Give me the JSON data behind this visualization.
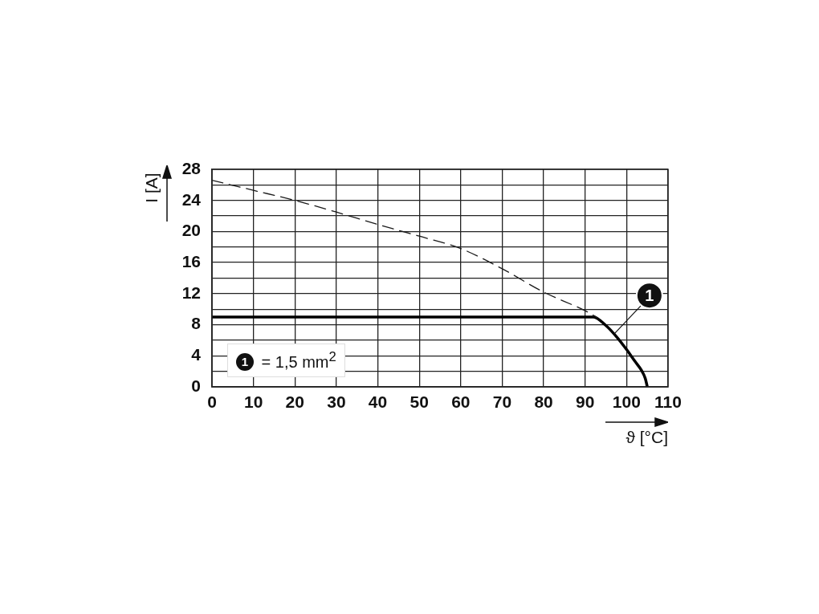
{
  "chart_data": {
    "type": "line",
    "xlabel": "ϑ [°C]",
    "ylabel": "I [A]",
    "series": [
      {
        "color": "#1a1a1a",
        "line_style": "dashed",
        "x": [
          0,
          10,
          20,
          30,
          40,
          50,
          60,
          70,
          80,
          90,
          93
        ],
        "values": [
          26.6,
          25.3,
          24,
          22.5,
          20.9,
          19.4,
          17.8,
          15.2,
          12.2,
          9.8,
          8.9
        ]
      },
      {
        "color": "#000000",
        "line_style": "solid",
        "x": [
          0,
          92,
          95,
          97.5,
          100,
          102,
          103.5,
          104.5,
          105
        ],
        "values": [
          9,
          9,
          7.9,
          6.5,
          4.8,
          3.3,
          2.2,
          1.1,
          0
        ]
      }
    ],
    "xlim": [
      0,
      110
    ],
    "xticks": [
      0,
      10,
      20,
      30,
      40,
      50,
      60,
      70,
      80,
      90,
      100,
      110
    ],
    "ylim": [
      0,
      28
    ],
    "yticks": [
      0,
      {
        "value": 2,
        "label": null
      },
      4,
      {
        "value": 6,
        "label": null
      },
      8,
      {
        "value": 10,
        "label": null
      },
      12,
      {
        "value": 14,
        "label": null
      },
      16,
      {
        "value": 18,
        "label": null
      },
      20,
      {
        "value": 22,
        "label": null
      },
      24,
      {
        "value": 26,
        "label": null
      },
      28
    ],
    "grid": true,
    "legend": false,
    "marker": "none",
    "annotations": [
      "1 = 1,5 mm$^{2}$",
      {
        "text": "1",
        "x": 97,
        "y": 6.8
      }
    ]
  }
}
